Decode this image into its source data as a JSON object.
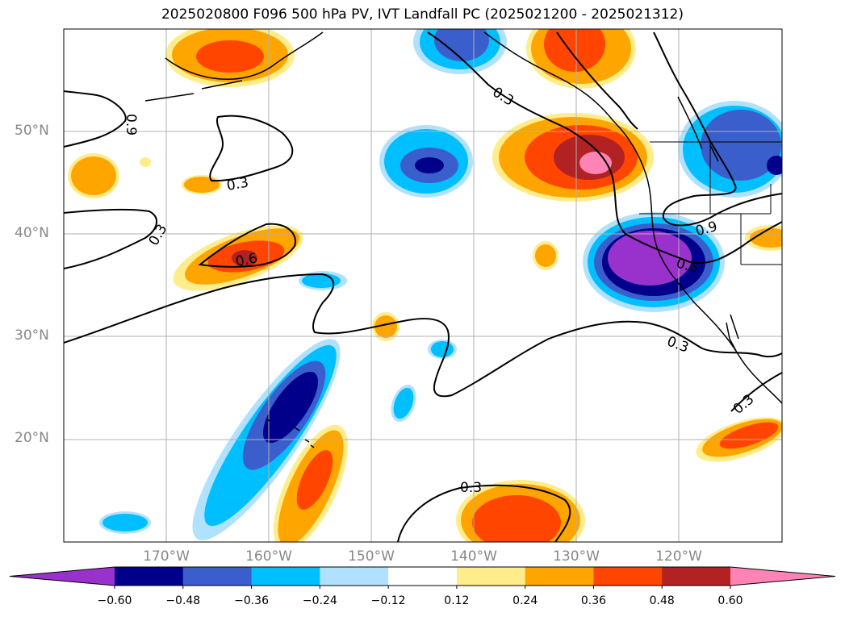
{
  "title": "2025020800 F096 500 hPa PV, IVT Landfall PC (2025021200 - 2025021312)",
  "map": {
    "lat_labels": [
      "50°N",
      "40°N",
      "30°N",
      "20°N"
    ],
    "lon_labels": [
      "170°W",
      "160°W",
      "150°W",
      "140°W",
      "130°W",
      "120°W"
    ],
    "contour_labels": [
      "0.9",
      "0.3",
      "0.3",
      "0.6",
      "0.3",
      "0.9",
      "0.6",
      "0.3",
      "0.3",
      "0.3"
    ]
  },
  "colorbar": {
    "colors": [
      "#9932cc",
      "#00008b",
      "#3a5fcd",
      "#00bfff",
      "#b0e2ff",
      "#ffffff",
      "#ffec8b",
      "#ffa500",
      "#ff4500",
      "#b22222",
      "#ff83b4"
    ],
    "labels": [
      "−0.60",
      "−0.48",
      "−0.36",
      "−0.24",
      "−0.12",
      "0.12",
      "0.24",
      "0.36",
      "0.48",
      "0.60"
    ]
  }
}
